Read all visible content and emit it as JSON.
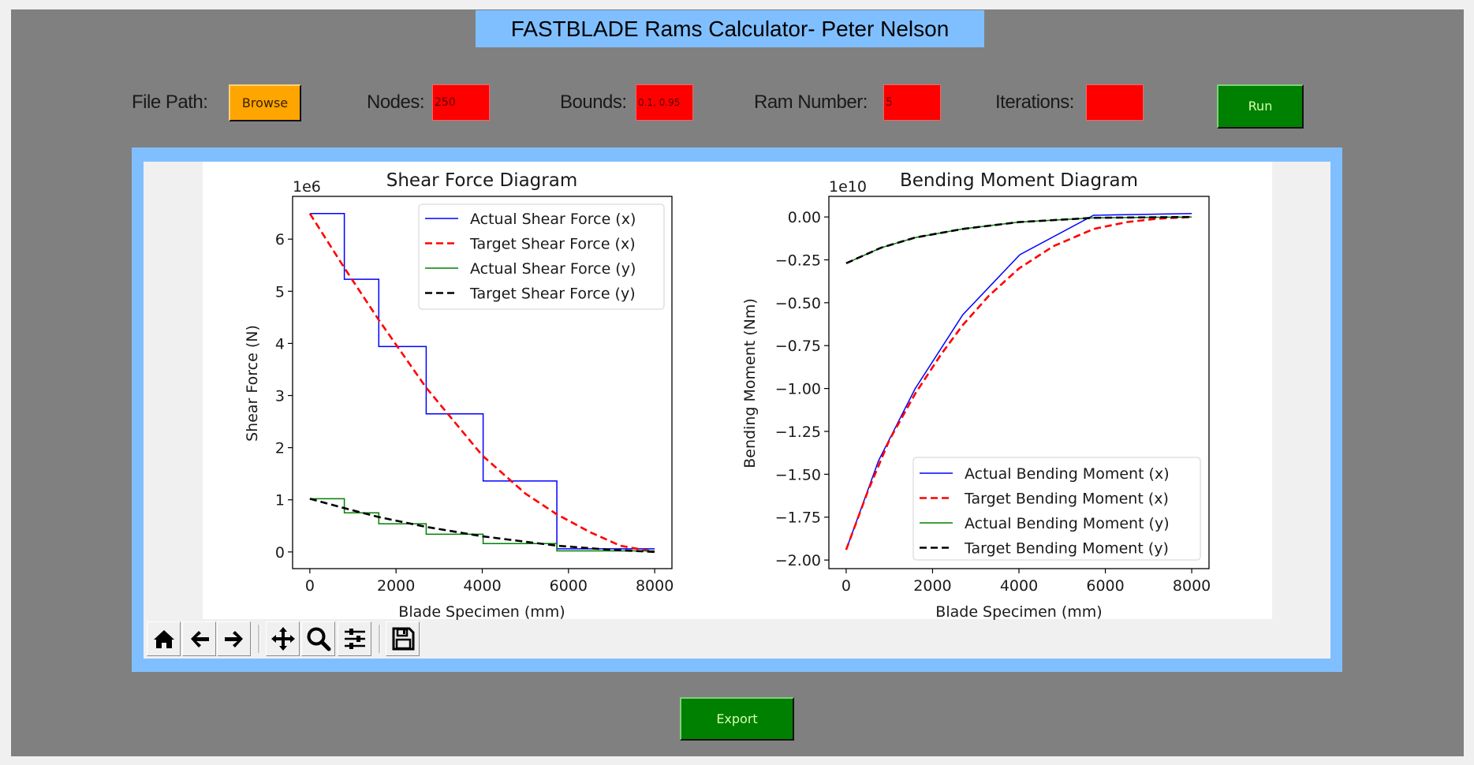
{
  "app": {
    "title": "FASTBLADE Rams Calculator- Peter Nelson"
  },
  "controls": {
    "file_path_label": "File Path:",
    "browse_label": "Browse",
    "nodes_label": "Nodes:",
    "nodes_value": "250",
    "bounds_label": "Bounds:",
    "bounds_value": "0.1, 0.95",
    "ram_number_label": "Ram Number:",
    "ram_number_value": "5",
    "iterations_label": "Iterations:",
    "iterations_value": "",
    "run_label": "Run",
    "export_label": "Export"
  },
  "colors": {
    "frame_bg": "#808080",
    "title_bg": "#80bfff",
    "entry_bg": "#ff0000",
    "browse_bg": "#ffa500",
    "run_bg": "#008000",
    "actual_x": "#0000ff",
    "target_x": "#ff0000",
    "actual_y": "#008000",
    "target_y": "#000000"
  },
  "toolbar": {
    "buttons": [
      {
        "name": "home-icon",
        "tooltip": "Home"
      },
      {
        "name": "back-arrow-icon",
        "tooltip": "Back"
      },
      {
        "name": "forward-arrow-icon",
        "tooltip": "Forward"
      },
      {
        "name": "pan-move-icon",
        "tooltip": "Pan"
      },
      {
        "name": "zoom-magnifier-icon",
        "tooltip": "Zoom"
      },
      {
        "name": "configure-subplots-icon",
        "tooltip": "Subplots"
      },
      {
        "name": "save-floppy-icon",
        "tooltip": "Save"
      }
    ]
  },
  "chart_data": [
    {
      "type": "line",
      "title": "Shear Force Diagram",
      "xlabel": "Blade Specimen (mm)",
      "ylabel": "Shear Force (N)",
      "offset_label": "1e6",
      "xlim": [
        -400,
        8400
      ],
      "ylim": [
        -0.32,
        6.82
      ],
      "xticks": [
        0,
        2000,
        4000,
        6000,
        8000
      ],
      "xtick_labels": [
        "0",
        "2000",
        "4000",
        "6000",
        "8000"
      ],
      "yticks": [
        0,
        1,
        2,
        3,
        4,
        5,
        6
      ],
      "ytick_labels": [
        "0",
        "1",
        "2",
        "3",
        "4",
        "5",
        "6"
      ],
      "legend_position": "upper right",
      "grid": false,
      "series": [
        {
          "name": "Actual Shear Force (x)",
          "style": "solid",
          "color": "#0000ff",
          "step": true,
          "x": [
            0,
            800,
            1600,
            2700,
            4020,
            5730,
            8000
          ],
          "y": [
            6.49,
            5.23,
            3.94,
            2.65,
            1.36,
            0.06,
            0.06
          ]
        },
        {
          "name": "Target Shear Force (x)",
          "style": "dashed",
          "color": "#ff0000",
          "step": false,
          "x": [
            0,
            800,
            1600,
            2700,
            4000,
            5000,
            5730,
            6500,
            7200,
            8000
          ],
          "y": [
            6.49,
            5.45,
            4.45,
            3.15,
            1.85,
            1.12,
            0.72,
            0.38,
            0.12,
            0.0
          ]
        },
        {
          "name": "Actual Shear Force (y)",
          "style": "solid",
          "color": "#008000",
          "step": true,
          "x": [
            0,
            800,
            1600,
            2700,
            4020,
            5730,
            8000
          ],
          "y": [
            1.02,
            0.75,
            0.54,
            0.34,
            0.16,
            0.02,
            0.02
          ]
        },
        {
          "name": "Target Shear Force (y)",
          "style": "dashed",
          "color": "#000000",
          "step": false,
          "x": [
            0,
            800,
            1600,
            2700,
            4000,
            5730,
            7000,
            8000
          ],
          "y": [
            1.02,
            0.84,
            0.67,
            0.48,
            0.3,
            0.12,
            0.04,
            0.0
          ]
        }
      ]
    },
    {
      "type": "line",
      "title": "Bending Moment Diagram",
      "xlabel": "Blade Specimen (mm)",
      "ylabel": "Bending Moment (Nm)",
      "offset_label": "1e10",
      "xlim": [
        -400,
        8400
      ],
      "ylim": [
        -2.05,
        0.12
      ],
      "xticks": [
        0,
        2000,
        4000,
        6000,
        8000
      ],
      "xtick_labels": [
        "0",
        "2000",
        "4000",
        "6000",
        "8000"
      ],
      "yticks": [
        0.0,
        -0.25,
        -0.5,
        -0.75,
        -1.0,
        -1.25,
        -1.5,
        -1.75,
        -2.0
      ],
      "ytick_labels": [
        "0.00",
        "−0.25",
        "−0.50",
        "−0.75",
        "−1.00",
        "−1.25",
        "−1.50",
        "−1.75",
        "−2.00"
      ],
      "legend_position": "lower right",
      "grid": false,
      "series": [
        {
          "name": "Actual Bending Moment (x)",
          "style": "solid",
          "color": "#0000ff",
          "step": false,
          "x": [
            0,
            750,
            1600,
            2700,
            4020,
            5730,
            8000
          ],
          "y": [
            -1.94,
            -1.42,
            -1.0,
            -0.57,
            -0.22,
            0.01,
            0.02
          ]
        },
        {
          "name": "Target Bending Moment (x)",
          "style": "dashed",
          "color": "#ff0000",
          "step": false,
          "x": [
            0,
            500,
            1000,
            1600,
            2200,
            2700,
            3300,
            4000,
            4800,
            5730,
            6500,
            7200,
            8000
          ],
          "y": [
            -1.94,
            -1.6,
            -1.3,
            -1.03,
            -0.8,
            -0.63,
            -0.46,
            -0.3,
            -0.17,
            -0.07,
            -0.03,
            -0.01,
            0.0
          ]
        },
        {
          "name": "Actual Bending Moment (y)",
          "style": "solid",
          "color": "#008000",
          "step": false,
          "x": [
            0,
            800,
            1600,
            2700,
            4000,
            5730,
            8000
          ],
          "y": [
            -0.27,
            -0.18,
            -0.12,
            -0.07,
            -0.03,
            -0.005,
            0.0
          ]
        },
        {
          "name": "Target Bending Moment (y)",
          "style": "dashed",
          "color": "#000000",
          "step": false,
          "x": [
            0,
            800,
            1600,
            2700,
            4000,
            5730,
            8000
          ],
          "y": [
            -0.27,
            -0.18,
            -0.12,
            -0.07,
            -0.03,
            -0.005,
            0.0
          ]
        }
      ]
    }
  ]
}
